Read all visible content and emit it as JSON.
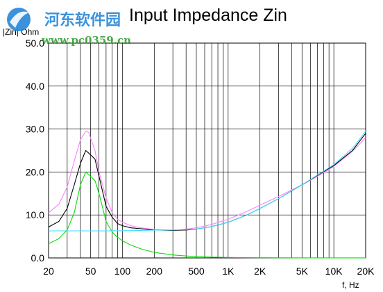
{
  "watermark": {
    "name": "河东软件园",
    "url": "www.pc0359.cn"
  },
  "chart_data": {
    "type": "line",
    "title": "Input Impedance Zin",
    "ylabel": "|Zin| Ohm",
    "xlabel": "f, Hz",
    "xscale": "log",
    "xlim": [
      20,
      20000
    ],
    "ylim": [
      0,
      50
    ],
    "grid": true,
    "legend": "none",
    "x_tick_labels": [
      {
        "value": 20,
        "label": "20"
      },
      {
        "value": 50,
        "label": "50"
      },
      {
        "value": 100,
        "label": "100"
      },
      {
        "value": 200,
        "label": "200"
      },
      {
        "value": 500,
        "label": "500"
      },
      {
        "value": 1000,
        "label": "1K"
      },
      {
        "value": 2000,
        "label": "2K"
      },
      {
        "value": 5000,
        "label": "5K"
      },
      {
        "value": 10000,
        "label": "10K"
      },
      {
        "value": 20000,
        "label": "20K"
      }
    ],
    "y_tick_labels": [
      {
        "value": 0,
        "label": "0.0"
      },
      {
        "value": 10,
        "label": "10.0"
      },
      {
        "value": 20,
        "label": "20.0"
      },
      {
        "value": 30,
        "label": "30.0"
      },
      {
        "value": 40,
        "label": "40.0"
      },
      {
        "value": 50,
        "label": "50.0"
      }
    ],
    "series": [
      {
        "color": "#ff80ff",
        "x": [
          20,
          25,
          30,
          35,
          40,
          45,
          48,
          55,
          60,
          70,
          80,
          90,
          100,
          120,
          150,
          200,
          300,
          400,
          500,
          700,
          1000,
          1500,
          2000,
          3000,
          5000,
          7000,
          10000,
          15000,
          20000
        ],
        "y": [
          10.5,
          12.5,
          16.5,
          22.5,
          27.5,
          29.5,
          29.2,
          25,
          20,
          14,
          10.5,
          9,
          8.3,
          7.5,
          7,
          6.6,
          6.5,
          6.7,
          7,
          7.8,
          9,
          10.8,
          12.3,
          14.3,
          17,
          19,
          21.3,
          24.8,
          28
        ]
      },
      {
        "color": "#000000",
        "x": [
          20,
          25,
          30,
          35,
          40,
          45,
          50,
          55,
          60,
          70,
          80,
          90,
          100,
          120,
          150,
          200,
          300,
          400,
          500,
          700,
          1000,
          1500,
          2000,
          3000,
          5000,
          7000,
          10000,
          15000,
          20000
        ],
        "y": [
          7.2,
          8.5,
          11.5,
          17,
          22,
          25,
          24,
          23,
          19,
          12,
          9.5,
          8,
          7.5,
          7,
          6.8,
          6.5,
          6.4,
          6.5,
          6.7,
          7.3,
          8.3,
          10,
          11.5,
          13.8,
          17,
          19.2,
          21.5,
          25,
          29
        ]
      },
      {
        "color": "#00e000",
        "x": [
          20,
          25,
          30,
          35,
          40,
          45,
          50,
          55,
          60,
          70,
          80,
          90,
          100,
          120,
          150,
          200,
          300,
          400,
          500,
          700,
          1000,
          1500,
          2000,
          3000,
          5000,
          10000,
          20000
        ],
        "y": [
          3.3,
          4.5,
          6.5,
          10.5,
          17,
          20,
          19,
          18,
          15,
          8.5,
          6,
          4.8,
          4,
          3,
          2.1,
          1.3,
          0.7,
          0.45,
          0.3,
          0.2,
          0.12,
          0.07,
          0.05,
          0.03,
          0.02,
          0.01,
          0.01
        ]
      },
      {
        "color": "#40e0ff",
        "x": [
          20,
          30,
          50,
          70,
          100,
          150,
          200,
          300,
          500,
          700,
          1000,
          1500,
          2000,
          3000,
          5000,
          7000,
          10000,
          15000,
          20000
        ],
        "y": [
          6.3,
          6.3,
          6.3,
          6.3,
          6.35,
          6.4,
          6.45,
          6.5,
          6.7,
          7.3,
          8.3,
          10,
          11.5,
          13.8,
          17,
          19.3,
          21.7,
          25.5,
          29.5
        ]
      }
    ]
  }
}
